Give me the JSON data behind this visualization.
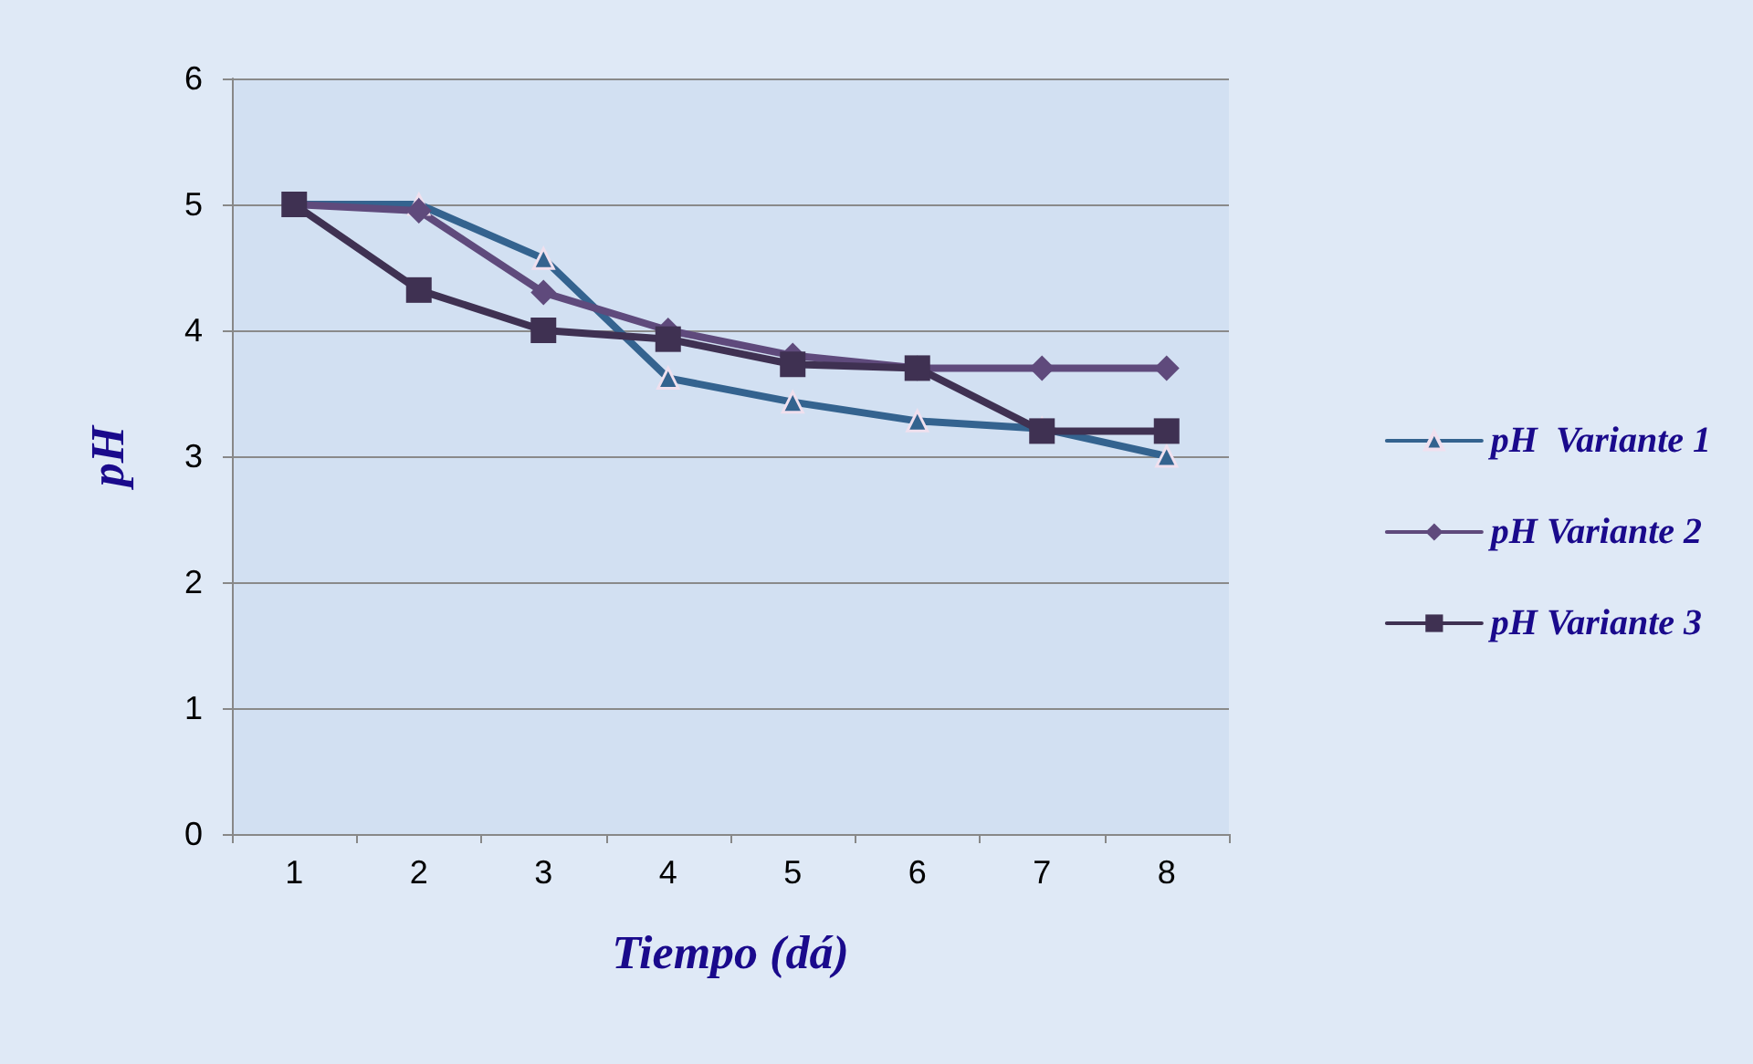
{
  "chart_data": {
    "type": "line",
    "xlabel": "Tiempo (dá)",
    "ylabel": "pH",
    "categories": [
      "1",
      "2",
      "3",
      "4",
      "5",
      "6",
      "7",
      "8"
    ],
    "series": [
      {
        "name": "pH  Variante 1",
        "color": "#34638f",
        "marker": "triangle",
        "values": [
          5,
          5,
          4.57,
          3.62,
          3.43,
          3.28,
          3.22,
          3.0
        ]
      },
      {
        "name": "pH Variante 2",
        "color": "#5f4a7c",
        "marker": "diamond",
        "values": [
          5,
          4.95,
          4.3,
          4.0,
          3.8,
          3.7,
          3.7,
          3.7
        ]
      },
      {
        "name": "pH Variante 3",
        "color": "#3f3152",
        "marker": "square",
        "values": [
          5,
          4.32,
          4.0,
          3.93,
          3.73,
          3.7,
          3.2,
          3.2
        ]
      }
    ],
    "ylim": [
      0,
      6
    ],
    "yticks": [
      0,
      1,
      2,
      3,
      4,
      5,
      6
    ],
    "grid": "y",
    "legend": "right"
  }
}
